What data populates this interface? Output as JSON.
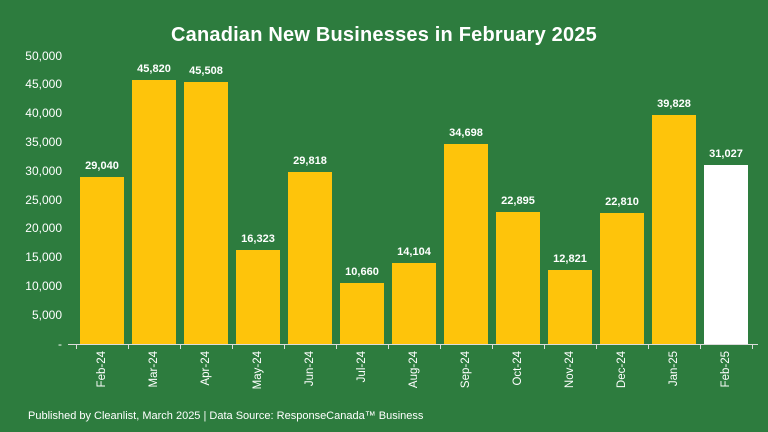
{
  "header": {
    "title": "Canadian New Businesses in February 2025"
  },
  "footer": {
    "text": "Published by Cleanlist, March 2025 | Data Source: ResponseCanada™ Business"
  },
  "colors": {
    "background": "#2D7C3E",
    "bar": "#FEC40B",
    "highlight_bar": "#FFFFFF",
    "text": "#FFFFFF",
    "axis": "#DCDCDC"
  },
  "chart_data": {
    "type": "bar",
    "title": "Canadian New Businesses in February 2025",
    "categories": [
      "Feb-24",
      "Mar-24",
      "Apr-24",
      "May-24",
      "Jun-24",
      "Jul-24",
      "Aug-24",
      "Sep-24",
      "Oct-24",
      "Nov-24",
      "Dec-24",
      "Jan-25",
      "Feb-25"
    ],
    "values": [
      29040,
      45820,
      45508,
      16323,
      29818,
      10660,
      14104,
      34698,
      22895,
      12821,
      22810,
      39828,
      31027
    ],
    "data_labels": [
      "29,040",
      "45,820",
      "45,508",
      "16,323",
      "29,818",
      "10,660",
      "14,104",
      "34,698",
      "22,895",
      "12,821",
      "22,810",
      "39,828",
      "31,027"
    ],
    "highlight_index": 12,
    "xlabel": "",
    "ylabel": "",
    "ylim": [
      0,
      50000
    ],
    "ytick_step": 5000,
    "ytick_labels": [
      "-",
      "5,000",
      "10,000",
      "15,000",
      "20,000",
      "25,000",
      "30,000",
      "35,000",
      "40,000",
      "45,000",
      "50,000"
    ],
    "grid": false,
    "legend": false,
    "bar_color": "#FEC40B",
    "highlight_color": "#FFFFFF"
  }
}
